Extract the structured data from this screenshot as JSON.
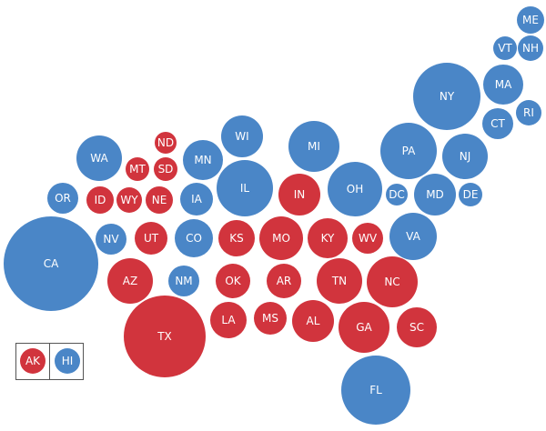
{
  "colors": {
    "red": "#d1343d",
    "blue": "#4a86c7"
  },
  "states": [
    {
      "abbr": "ME",
      "party": "blue"
    },
    {
      "abbr": "VT",
      "party": "blue"
    },
    {
      "abbr": "NH",
      "party": "blue"
    },
    {
      "abbr": "MA",
      "party": "blue"
    },
    {
      "abbr": "NY",
      "party": "blue"
    },
    {
      "abbr": "RI",
      "party": "blue"
    },
    {
      "abbr": "CT",
      "party": "blue"
    },
    {
      "abbr": "WI",
      "party": "blue"
    },
    {
      "abbr": "MI",
      "party": "blue"
    },
    {
      "abbr": "PA",
      "party": "blue"
    },
    {
      "abbr": "NJ",
      "party": "blue"
    },
    {
      "abbr": "ND",
      "party": "red"
    },
    {
      "abbr": "WA",
      "party": "blue"
    },
    {
      "abbr": "MT",
      "party": "red"
    },
    {
      "abbr": "SD",
      "party": "red"
    },
    {
      "abbr": "MN",
      "party": "blue"
    },
    {
      "abbr": "IL",
      "party": "blue"
    },
    {
      "abbr": "IN",
      "party": "red"
    },
    {
      "abbr": "OH",
      "party": "blue"
    },
    {
      "abbr": "OR",
      "party": "blue"
    },
    {
      "abbr": "ID",
      "party": "red"
    },
    {
      "abbr": "WY",
      "party": "red"
    },
    {
      "abbr": "NE",
      "party": "red"
    },
    {
      "abbr": "IA",
      "party": "blue"
    },
    {
      "abbr": "DC",
      "party": "blue"
    },
    {
      "abbr": "MD",
      "party": "blue"
    },
    {
      "abbr": "DE",
      "party": "blue"
    },
    {
      "abbr": "NV",
      "party": "blue"
    },
    {
      "abbr": "UT",
      "party": "red"
    },
    {
      "abbr": "CO",
      "party": "blue"
    },
    {
      "abbr": "KS",
      "party": "red"
    },
    {
      "abbr": "MO",
      "party": "red"
    },
    {
      "abbr": "KY",
      "party": "red"
    },
    {
      "abbr": "WV",
      "party": "red"
    },
    {
      "abbr": "VA",
      "party": "blue"
    },
    {
      "abbr": "CA",
      "party": "blue"
    },
    {
      "abbr": "AZ",
      "party": "red"
    },
    {
      "abbr": "NM",
      "party": "blue"
    },
    {
      "abbr": "OK",
      "party": "red"
    },
    {
      "abbr": "AR",
      "party": "red"
    },
    {
      "abbr": "TN",
      "party": "red"
    },
    {
      "abbr": "NC",
      "party": "red"
    },
    {
      "abbr": "LA",
      "party": "red"
    },
    {
      "abbr": "MS",
      "party": "red"
    },
    {
      "abbr": "AL",
      "party": "red"
    },
    {
      "abbr": "GA",
      "party": "red"
    },
    {
      "abbr": "SC",
      "party": "red"
    },
    {
      "abbr": "TX",
      "party": "red"
    },
    {
      "abbr": "FL",
      "party": "blue"
    },
    {
      "abbr": "AK",
      "party": "red"
    },
    {
      "abbr": "HI",
      "party": "blue"
    }
  ]
}
